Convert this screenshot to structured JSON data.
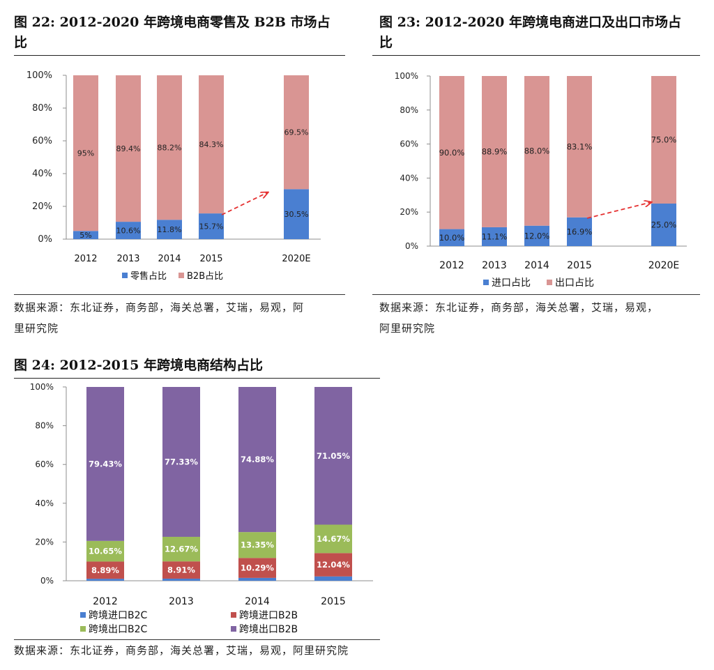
{
  "figures": [
    {
      "title_line1": "图  22:  2012-2020 年跨境电商零售及 B2B 市场占",
      "title_line2": "比",
      "source_line1": "数据来源：东北证券，商务部，海关总署，艾瑞，易观，阿",
      "source_line2": "里研究院"
    },
    {
      "title_line1": "图  23:  2012-2020 年跨境电商进口及出口市场占",
      "title_line2": "比",
      "source_line1": "数据来源：东北证券，商务部，海关总署，艾瑞，易观，",
      "source_line2": "阿里研究院"
    },
    {
      "title_line1": "图  24:  2012-2015 年跨境电商结构占比",
      "source_line1": "数据来源：东北证券，商务部，海关总署，艾瑞，易观，阿里研究院"
    }
  ],
  "chart_data": [
    {
      "type": "bar",
      "stacked": true,
      "categories": [
        "2012",
        "2013",
        "2014",
        "2015",
        "2020E"
      ],
      "series": [
        {
          "name": "零售占比",
          "color": "#4a7fd1",
          "values": [
            5,
            10.6,
            11.8,
            15.7,
            30.5
          ],
          "labels": [
            "5%",
            "10.6%",
            "11.8%",
            "15.7%",
            "30.5%"
          ]
        },
        {
          "name": "B2B占比",
          "color": "#d99593",
          "values": [
            95,
            89.4,
            88.2,
            84.3,
            69.5
          ],
          "labels": [
            "95%",
            "89.4%",
            "88.2%",
            "84.3%",
            "69.5%"
          ]
        }
      ],
      "ylim": [
        0,
        100
      ],
      "yticks": [
        "0%",
        "20%",
        "40%",
        "60%",
        "80%",
        "100%"
      ],
      "legend": "bottom",
      "annotation": "dashed red arrow from 2015 to 2020E"
    },
    {
      "type": "bar",
      "stacked": true,
      "categories": [
        "2012",
        "2013",
        "2014",
        "2015",
        "2020E"
      ],
      "series": [
        {
          "name": "进口占比",
          "color": "#4a7fd1",
          "values": [
            10.0,
            11.1,
            12.0,
            16.9,
            25.0
          ],
          "labels": [
            "10.0%",
            "11.1%",
            "12.0%",
            "16.9%",
            "25.0%"
          ]
        },
        {
          "name": "出口占比",
          "color": "#d99593",
          "values": [
            90.0,
            88.9,
            88.0,
            83.1,
            75.0
          ],
          "labels": [
            "90.0%",
            "88.9%",
            "88.0%",
            "83.1%",
            "75.0%"
          ]
        }
      ],
      "ylim": [
        0,
        100
      ],
      "yticks": [
        "0%",
        "20%",
        "40%",
        "60%",
        "80%",
        "100%"
      ],
      "legend": "bottom",
      "annotation": "dashed red arrow from 2015 to 2020E"
    },
    {
      "type": "bar",
      "stacked": true,
      "categories": [
        "2012",
        "2013",
        "2014",
        "2015"
      ],
      "series": [
        {
          "name": "跨境进口B2C",
          "color": "#4a7fd1",
          "values": [
            1.03,
            1.09,
            1.48,
            2.24
          ],
          "labels": [
            "",
            "",
            "",
            ""
          ]
        },
        {
          "name": "跨境进口B2B",
          "color": "#c0504d",
          "values": [
            8.89,
            8.91,
            10.29,
            12.04
          ],
          "labels": [
            "8.89%",
            "8.91%",
            "10.29%",
            "12.04%"
          ]
        },
        {
          "name": "跨境出口B2C",
          "color": "#9bbb59",
          "values": [
            10.65,
            12.67,
            13.35,
            14.67
          ],
          "labels": [
            "10.65%",
            "12.67%",
            "13.35%",
            "14.67%"
          ]
        },
        {
          "name": "跨境出口B2B",
          "color": "#8064a2",
          "values": [
            79.43,
            77.33,
            74.88,
            71.05
          ],
          "labels": [
            "79.43%",
            "77.33%",
            "74.88%",
            "71.05%"
          ]
        }
      ],
      "ylim": [
        0,
        100
      ],
      "yticks": [
        "0%",
        "20%",
        "40%",
        "60%",
        "80%",
        "100%"
      ],
      "legend": "bottom"
    }
  ]
}
